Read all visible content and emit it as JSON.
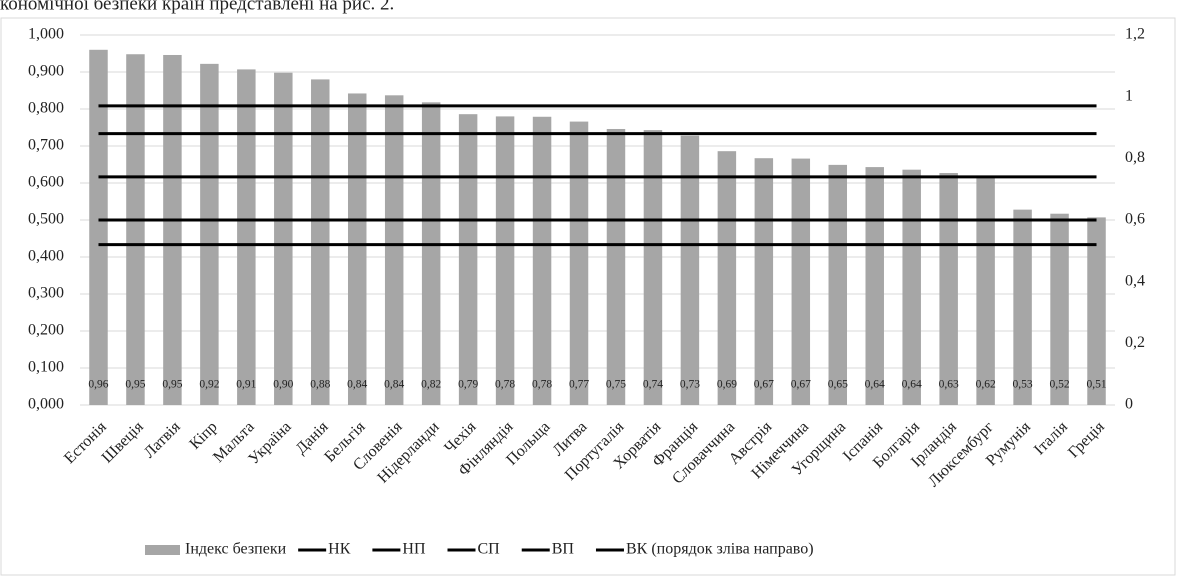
{
  "caption": "кономічної безпеки країн представлені на рис. 2.",
  "chart_data": {
    "type": "bar",
    "categories": [
      "Естонія",
      "Швеція",
      "Латвія",
      "Кіпр",
      "Мальта",
      "Україна",
      "Данія",
      "Бельгія",
      "Словенія",
      "Нідерланди",
      "Чехія",
      "Фінляндія",
      "Польща",
      "Литва",
      "Португалія",
      "Хорватія",
      "Франція",
      "Словаччина",
      "Австрія",
      "Німеччина",
      "Угорщина",
      "Іспанія",
      "Болгарія",
      "Ірландія",
      "Люксембург",
      "Румунія",
      "Італія",
      "Греція"
    ],
    "series": [
      {
        "name": "Індекс безпеки",
        "color": "#a6a6a6",
        "values": [
          0.96,
          0.948,
          0.946,
          0.922,
          0.907,
          0.898,
          0.88,
          0.842,
          0.837,
          0.818,
          0.786,
          0.78,
          0.779,
          0.766,
          0.746,
          0.743,
          0.728,
          0.686,
          0.667,
          0.666,
          0.649,
          0.643,
          0.636,
          0.627,
          0.617,
          0.528,
          0.517,
          0.507
        ],
        "value_labels": [
          "0,96",
          "0,95",
          "0,95",
          "0,92",
          "0,91",
          "0,90",
          "0,88",
          "0,84",
          "0,84",
          "0,82",
          "0,79",
          "0,78",
          "0,78",
          "0,77",
          "0,75",
          "0,74",
          "0,73",
          "0,69",
          "0,67",
          "0,67",
          "0,65",
          "0,64",
          "0,64",
          "0,63",
          "0,62",
          "0,53",
          "0,52",
          "0,51"
        ]
      }
    ],
    "thresholds": [
      {
        "name": "НК",
        "value": 0.52,
        "color": "#000000",
        "axis": "y2"
      },
      {
        "name": "НП",
        "value": 0.6,
        "color": "#000000",
        "axis": "y2"
      },
      {
        "name": "СП",
        "value": 0.74,
        "color": "#000000",
        "axis": "y2"
      },
      {
        "name": "ВП",
        "value": 0.88,
        "color": "#000000",
        "axis": "y2"
      },
      {
        "name": "ВК (порядок зліва направо)",
        "value": 0.97,
        "color": "#000000",
        "axis": "y2"
      }
    ],
    "ylim": [
      0,
      1
    ],
    "yticks": [
      {
        "value": 0,
        "label": "0,000"
      },
      {
        "value": 0.1,
        "label": "0,100"
      },
      {
        "value": 0.2,
        "label": "0,200"
      },
      {
        "value": 0.3,
        "label": "0,300"
      },
      {
        "value": 0.4,
        "label": "0,400"
      },
      {
        "value": 0.5,
        "label": "0,500"
      },
      {
        "value": 0.6,
        "label": "0,600"
      },
      {
        "value": 0.7,
        "label": "0,700"
      },
      {
        "value": 0.8,
        "label": "0,800"
      },
      {
        "value": 0.9,
        "label": "0,900"
      },
      {
        "value": 1,
        "label": "1,000"
      }
    ],
    "y2lim": [
      0,
      1.2
    ],
    "y2ticks": [
      0,
      {
        "value": 0.2,
        "label": "0,2"
      },
      {
        "value": 0.4,
        "label": "0,4"
      },
      {
        "value": 0.6,
        "label": "0,6"
      },
      {
        "value": 0.8,
        "label": "0,8"
      },
      1,
      {
        "value": 1.2,
        "label": "1,2"
      }
    ],
    "grid": true
  }
}
